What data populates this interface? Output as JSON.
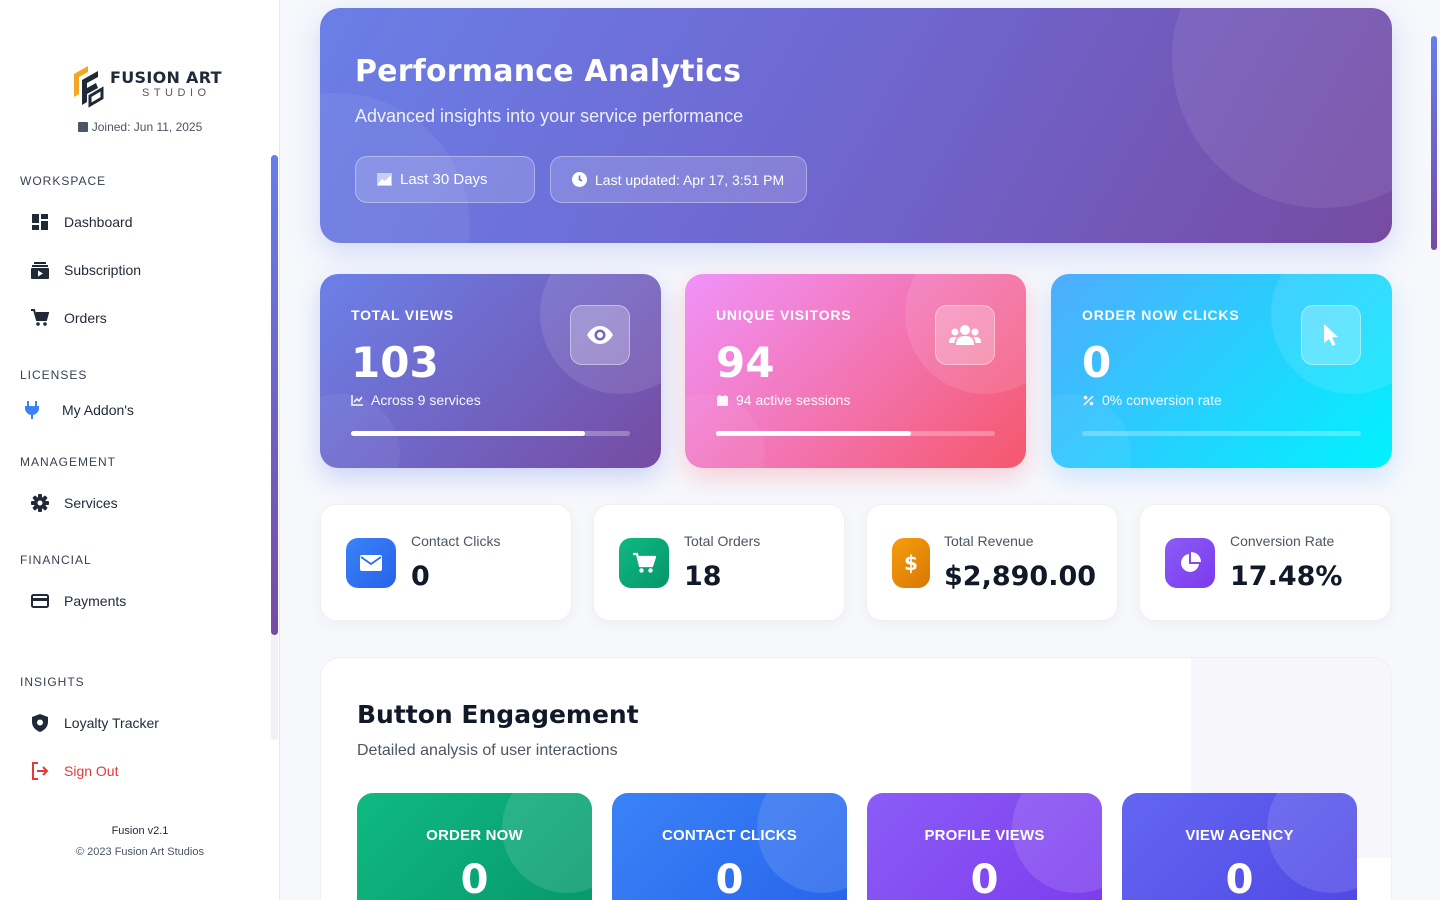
{
  "sidebar": {
    "brand": {
      "title": "FUSION ART",
      "subtitle": "STUDIO"
    },
    "joined": "Joined: Jun 11, 2025",
    "sections": {
      "workspace": "WORKSPACE",
      "licenses": "LICENSES",
      "management": "MANAGEMENT",
      "financial": "FINANCIAL",
      "insights": "INSIGHTS"
    },
    "items": {
      "dashboard": "Dashboard",
      "subscription": "Subscription",
      "orders": "Orders",
      "addons": "My Addon's",
      "services": "Services",
      "payments": "Payments",
      "loyalty": "Loyalty Tracker",
      "signout": "Sign Out"
    },
    "footer": {
      "version": "Fusion v2.1",
      "copyright": "© 2023 Fusion Art Studios"
    }
  },
  "hero": {
    "title": "Performance Analytics",
    "subtitle": "Advanced insights into your service performance",
    "range_label": "Last 30 Days",
    "updated_label": "Last updated: Apr 17, 3:51 PM"
  },
  "stats": [
    {
      "label": "TOTAL VIEWS",
      "value": "103",
      "sub": "Across 9 services",
      "icon": "eye-icon",
      "progress": 0.84
    },
    {
      "label": "UNIQUE VISITORS",
      "value": "94",
      "sub": "94 active sessions",
      "icon": "users-icon",
      "progress": 0.7
    },
    {
      "label": "ORDER NOW CLICKS",
      "value": "0",
      "sub": "0% conversion rate",
      "icon": "pointer-icon",
      "progress": 0
    }
  ],
  "mini": [
    {
      "label": "Contact Clicks",
      "value": "0",
      "icon": "envelope-icon",
      "color": "#3b82f6"
    },
    {
      "label": "Total Orders",
      "value": "18",
      "icon": "cart-icon",
      "color": "#10b981"
    },
    {
      "label": "Total Revenue",
      "value": "$2,890.00",
      "icon": "dollar-icon",
      "color": "#f59e0b"
    },
    {
      "label": "Conversion Rate",
      "value": "17.48%",
      "icon": "pie-chart-icon",
      "color": "#8b5cf6"
    }
  ],
  "engagement": {
    "title": "Button Engagement",
    "subtitle": "Detailed analysis of user interactions",
    "cards": [
      {
        "label": "ORDER NOW",
        "value": "0"
      },
      {
        "label": "CONTACT CLICKS",
        "value": "0"
      },
      {
        "label": "PROFILE VIEWS",
        "value": "0"
      },
      {
        "label": "VIEW AGENCY",
        "value": "0"
      }
    ]
  }
}
